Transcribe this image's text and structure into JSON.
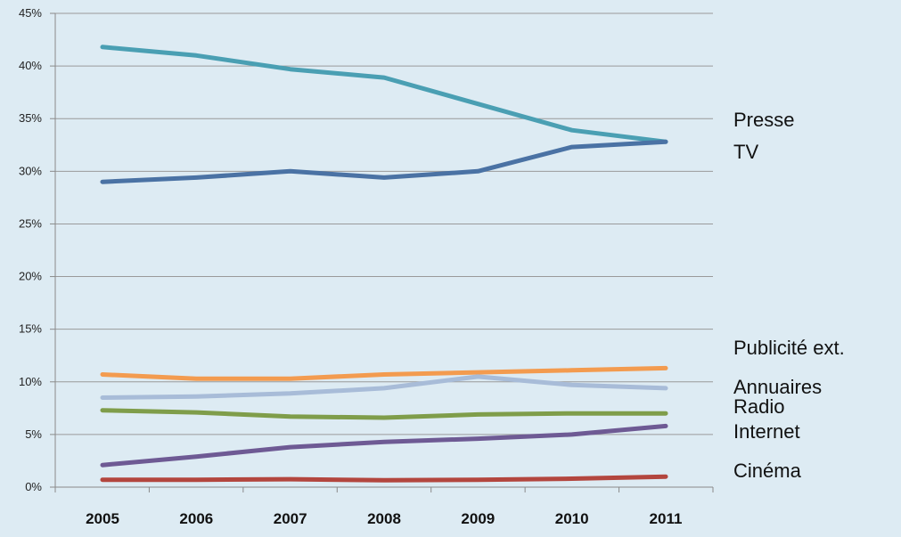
{
  "chart_data": {
    "type": "line",
    "title": "",
    "xlabel": "",
    "ylabel": "",
    "categories": [
      "2005",
      "2006",
      "2007",
      "2008",
      "2009",
      "2010",
      "2011"
    ],
    "ylim": [
      0,
      45
    ],
    "yticks": [
      "0%",
      "5%",
      "10%",
      "15%",
      "20%",
      "25%",
      "30%",
      "35%",
      "40%",
      "45%"
    ],
    "grid": true,
    "legend": "right, labels beside line ends",
    "series": [
      {
        "name": "Presse",
        "color": "#4a9fb3",
        "values": [
          41.8,
          41.0,
          39.7,
          38.9,
          36.4,
          33.9,
          32.8
        ]
      },
      {
        "name": "TV",
        "color": "#4a72a4",
        "values": [
          29.0,
          29.4,
          30.0,
          29.4,
          30.0,
          32.3,
          32.8
        ]
      },
      {
        "name": "Publicité ext.",
        "color": "#f39b4f",
        "values": [
          10.7,
          10.3,
          10.3,
          10.7,
          10.9,
          11.1,
          11.3
        ]
      },
      {
        "name": "Annuaires",
        "color": "#a8bcd8",
        "values": [
          8.5,
          8.6,
          8.9,
          9.4,
          10.5,
          9.7,
          9.4
        ]
      },
      {
        "name": "Radio",
        "color": "#7f9d4a",
        "values": [
          7.3,
          7.1,
          6.7,
          6.6,
          6.9,
          7.0,
          7.0
        ]
      },
      {
        "name": "Internet",
        "color": "#6e5a94",
        "values": [
          2.1,
          2.9,
          3.8,
          4.3,
          4.6,
          5.0,
          5.8
        ]
      },
      {
        "name": "Cinéma",
        "color": "#b3463e",
        "values": [
          0.7,
          0.7,
          0.75,
          0.65,
          0.7,
          0.8,
          1.0
        ]
      }
    ]
  }
}
